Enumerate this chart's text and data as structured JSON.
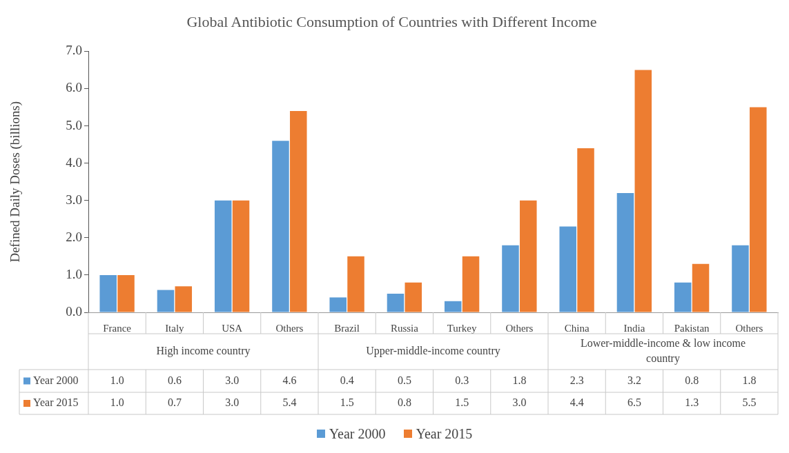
{
  "chart_data": {
    "type": "bar",
    "title": "Global Antibiotic Consumption of Countries with Different Income",
    "ylabel": "Defined Daily Doses (billions)",
    "categories": [
      "France",
      "Italy",
      "USA",
      "Others",
      "Brazil",
      "Russia",
      "Turkey",
      "Others",
      "China",
      "India",
      "Pakistan",
      "Others"
    ],
    "annotations": [
      "High income country",
      "Upper-middle-income country",
      "Lower-middle-income & low income country"
    ],
    "series": [
      {
        "name": "Year 2000",
        "color": "#5b9bd5",
        "values": [
          1.0,
          0.6,
          3.0,
          4.6,
          0.4,
          0.5,
          0.3,
          1.8,
          2.3,
          3.2,
          0.8,
          1.8
        ],
        "value_labels": [
          "1.0",
          "0.6",
          "3.0",
          "4.6",
          "0.4",
          "0.5",
          "0.3",
          "1.8",
          "2.3",
          "3.2",
          "0.8",
          "1.8"
        ]
      },
      {
        "name": "Year 2015",
        "color": "#ed7d31",
        "values": [
          1.0,
          0.7,
          3.0,
          5.4,
          1.5,
          0.8,
          1.5,
          3.0,
          4.4,
          6.5,
          1.3,
          5.5
        ],
        "value_labels": [
          "1.0",
          "0.7",
          "3.0",
          "5.4",
          "1.5",
          "0.8",
          "1.5",
          "3.0",
          "4.4",
          "6.5",
          "1.3",
          "5.5"
        ]
      }
    ],
    "ylim": [
      0,
      7
    ],
    "yticks": [
      {
        "value": 0,
        "label": "0.0"
      },
      {
        "value": 1,
        "label": "1.0"
      },
      {
        "value": 2,
        "label": "2.0"
      },
      {
        "value": 3,
        "label": "3.0"
      },
      {
        "value": 4,
        "label": "4.0"
      },
      {
        "value": 5,
        "label": "5.0"
      },
      {
        "value": 6,
        "label": "6.0"
      },
      {
        "value": 7,
        "label": "7.0"
      }
    ],
    "legend": "bottom"
  }
}
